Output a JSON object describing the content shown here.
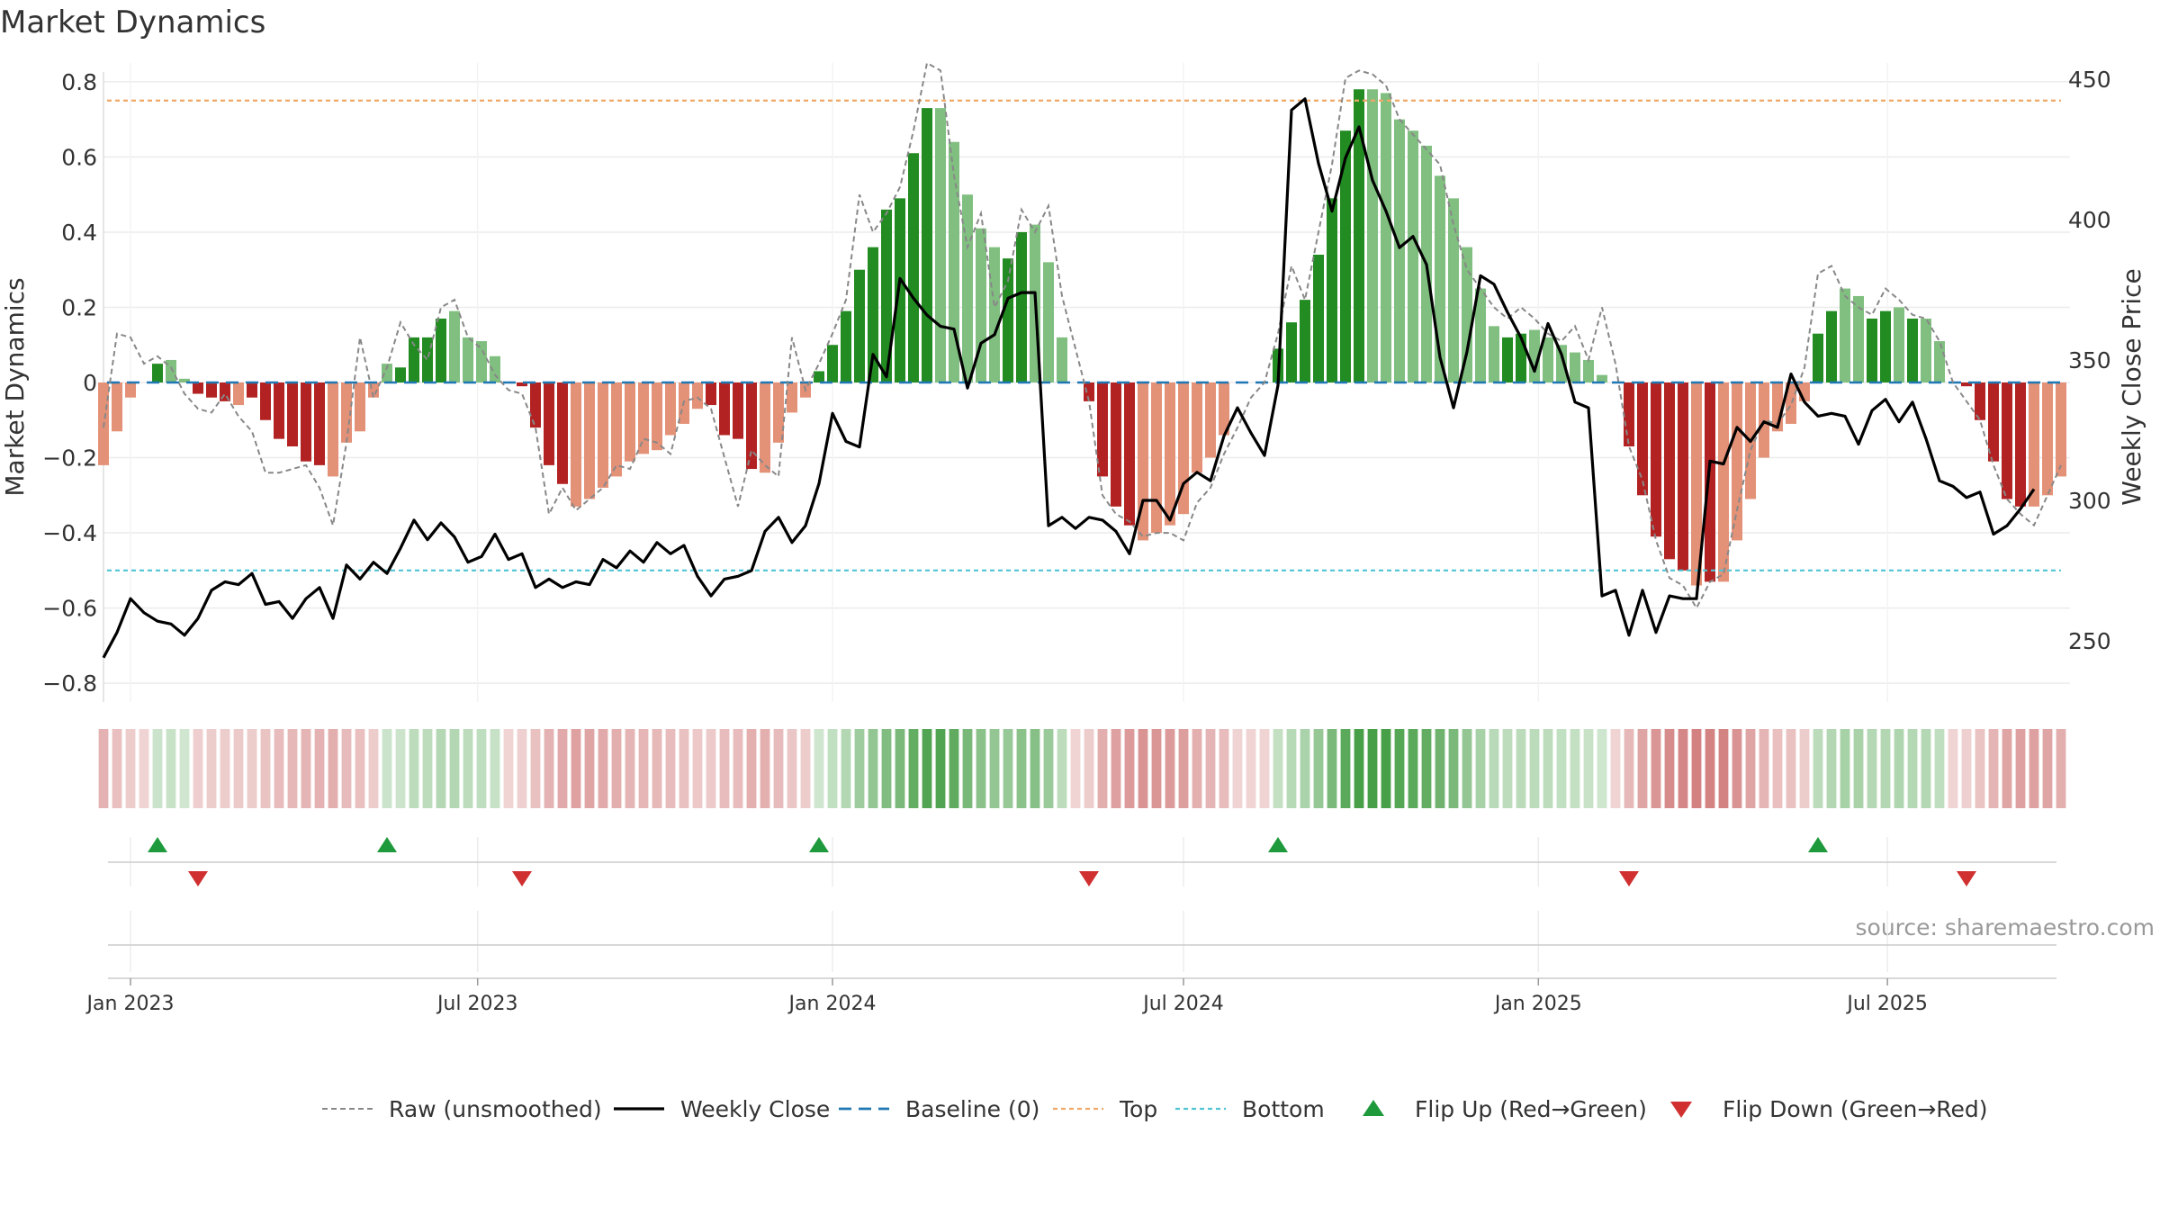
{
  "chart_data": {
    "type": "bar",
    "title": "Market Dynamics",
    "ylabel": "Market Dynamics",
    "y2label": "Weekly Close Price",
    "source": "source: sharemaestro.com",
    "ylim": [
      -0.85,
      0.85
    ],
    "y2lim": [
      242,
      450
    ],
    "yticks": [
      -0.8,
      -0.6,
      -0.4,
      -0.2,
      0,
      0.2,
      0.4,
      0.6,
      0.8
    ],
    "ytick_labels": [
      "−0.8",
      "−0.6",
      "−0.4",
      "−0.2",
      "0",
      "0.2",
      "0.4",
      "0.6",
      "0.8"
    ],
    "y2ticks": [
      250,
      300,
      350,
      400,
      450
    ],
    "y2tick_labels": [
      "250",
      "300",
      "350",
      "400",
      "450"
    ],
    "top_level": 0.75,
    "bottom_level": -0.5,
    "baseline": 0,
    "xlim": [
      "2022-12-19",
      "2025-09-29"
    ],
    "xticks": [
      {
        "date": "2023-01-02",
        "label": "Jan 2023"
      },
      {
        "date": "2023-07-01",
        "label": "Jul 2023"
      },
      {
        "date": "2024-01-01",
        "label": "Jan 2024"
      },
      {
        "date": "2024-07-01",
        "label": "Jul 2024"
      },
      {
        "date": "2025-01-01",
        "label": "Jan 2025"
      },
      {
        "date": "2025-07-01",
        "label": "Jul 2025"
      }
    ],
    "start_week": "2022-12-19",
    "grid": true,
    "legend_position": "bottom",
    "legend": [
      "Raw (unsmoothed)",
      "Weekly Close",
      "Baseline (0)",
      "Top",
      "Bottom",
      "Flip Up (Red→Green)",
      "Flip Down (Green→Red)"
    ],
    "colors": {
      "strong_green": "#228b22",
      "light_green": "#80bf80",
      "strong_red": "#b22222",
      "light_red": "#e39177",
      "close_line": "#000000",
      "raw_line": "#888888",
      "baseline": "#1f77b4",
      "top": "#f0a868",
      "bottom": "#4fc4d4",
      "flip_up": "#1e9a3c",
      "flip_down": "#d03030"
    },
    "dynamics": [
      -0.22,
      -0.13,
      -0.04,
      0,
      0.05,
      0.06,
      0.01,
      -0.03,
      -0.04,
      -0.05,
      -0.06,
      -0.04,
      -0.1,
      -0.15,
      -0.17,
      -0.21,
      -0.22,
      -0.25,
      -0.16,
      -0.13,
      -0.04,
      0.05,
      0.04,
      0.12,
      0.12,
      0.17,
      0.19,
      0.12,
      0.11,
      0.07,
      0,
      -0.01,
      -0.12,
      -0.22,
      -0.27,
      -0.33,
      -0.31,
      -0.28,
      -0.25,
      -0.21,
      -0.19,
      -0.18,
      -0.14,
      -0.11,
      -0.07,
      -0.06,
      -0.14,
      -0.15,
      -0.23,
      -0.24,
      -0.16,
      -0.08,
      -0.04,
      0.03,
      0.1,
      0.19,
      0.3,
      0.36,
      0.46,
      0.49,
      0.61,
      0.73,
      0.73,
      0.64,
      0.5,
      0.41,
      0.36,
      0.33,
      0.4,
      0.42,
      0.32,
      0.12,
      0,
      -0.05,
      -0.25,
      -0.33,
      -0.38,
      -0.42,
      -0.4,
      -0.38,
      -0.35,
      -0.24,
      -0.2,
      -0.14,
      0,
      0,
      0,
      0.09,
      0.16,
      0.22,
      0.34,
      0.49,
      0.67,
      0.78,
      0.78,
      0.77,
      0.7,
      0.67,
      0.63,
      0.55,
      0.49,
      0.36,
      0.25,
      0.15,
      0.12,
      0.13,
      0.14,
      0.12,
      0.1,
      0.08,
      0.06,
      0.02,
      0,
      -0.17,
      -0.3,
      -0.41,
      -0.47,
      -0.5,
      -0.54,
      -0.53,
      -0.53,
      -0.42,
      -0.31,
      -0.2,
      -0.13,
      -0.11,
      -0.05,
      0.13,
      0.19,
      0.25,
      0.23,
      0.17,
      0.19,
      0.2,
      0.17,
      0.17,
      0.11,
      0,
      -0.01,
      -0.1,
      -0.21,
      -0.31,
      -0.33,
      -0.33,
      -0.3,
      -0.25
    ],
    "raw": [
      -0.12,
      0.13,
      0.12,
      0.05,
      0.07,
      0.04,
      -0.03,
      -0.07,
      -0.08,
      -0.03,
      -0.09,
      -0.13,
      -0.24,
      -0.24,
      -0.23,
      -0.22,
      -0.28,
      -0.38,
      -0.16,
      0.12,
      -0.04,
      0.04,
      0.16,
      0.1,
      0.06,
      0.2,
      0.22,
      0.12,
      0.09,
      0.02,
      -0.02,
      -0.03,
      -0.12,
      -0.35,
      -0.28,
      -0.34,
      -0.31,
      -0.28,
      -0.22,
      -0.23,
      -0.15,
      -0.16,
      -0.19,
      -0.05,
      -0.04,
      -0.07,
      -0.2,
      -0.33,
      -0.18,
      -0.22,
      -0.25,
      0.12,
      -0.02,
      0.05,
      0.13,
      0.22,
      0.5,
      0.4,
      0.45,
      0.52,
      0.67,
      0.85,
      0.83,
      0.55,
      0.36,
      0.45,
      0.2,
      0.27,
      0.46,
      0.4,
      0.47,
      0.23,
      0.09,
      -0.05,
      -0.3,
      -0.35,
      -0.37,
      -0.41,
      -0.4,
      -0.4,
      -0.42,
      -0.32,
      -0.28,
      -0.19,
      -0.12,
      -0.04,
      0,
      0.13,
      0.31,
      0.22,
      0.4,
      0.58,
      0.81,
      0.83,
      0.82,
      0.79,
      0.7,
      0.66,
      0.62,
      0.58,
      0.42,
      0.3,
      0.25,
      0.2,
      0.17,
      0.2,
      0.17,
      0.13,
      0.11,
      0.15,
      0.06,
      0.2,
      0.05,
      -0.17,
      -0.26,
      -0.42,
      -0.52,
      -0.54,
      -0.6,
      -0.53,
      -0.51,
      -0.34,
      -0.18,
      -0.1,
      -0.11,
      -0.06,
      0.04,
      0.29,
      0.31,
      0.23,
      0.2,
      0.18,
      0.25,
      0.22,
      0.18,
      0.17,
      0.11,
      0,
      -0.05,
      -0.1,
      -0.22,
      -0.31,
      -0.35,
      -0.38,
      -0.3,
      -0.22
    ],
    "close": [
      244,
      253,
      265,
      260,
      257,
      256,
      252,
      258,
      268,
      271,
      270,
      274,
      263,
      264,
      258,
      265,
      269,
      258,
      277,
      272,
      278,
      274,
      283,
      293,
      286,
      292,
      287,
      278,
      280,
      288,
      279,
      281,
      269,
      272,
      269,
      271,
      270,
      279,
      276,
      282,
      278,
      285,
      281,
      284,
      273,
      266,
      272,
      273,
      275,
      289,
      294,
      285,
      291,
      306,
      331,
      321,
      319,
      352,
      344,
      379,
      372,
      366,
      362,
      361,
      340,
      356,
      359,
      372,
      374,
      374,
      291,
      294,
      290,
      294,
      293,
      289,
      281,
      300,
      300,
      293,
      306,
      310,
      307,
      323,
      333,
      324,
      316,
      341,
      439,
      443,
      420,
      403,
      422,
      433,
      414,
      403,
      390,
      394,
      384,
      351,
      333,
      353,
      380,
      377,
      367,
      358,
      346,
      363,
      352,
      335,
      333,
      266,
      268,
      252,
      268,
      253,
      266,
      265,
      265,
      314,
      313,
      326,
      321,
      328,
      326,
      345,
      335,
      330,
      331,
      330,
      320,
      332,
      336,
      328,
      335,
      322,
      307,
      305,
      301,
      303,
      288,
      291,
      297,
      304
    ]
  }
}
